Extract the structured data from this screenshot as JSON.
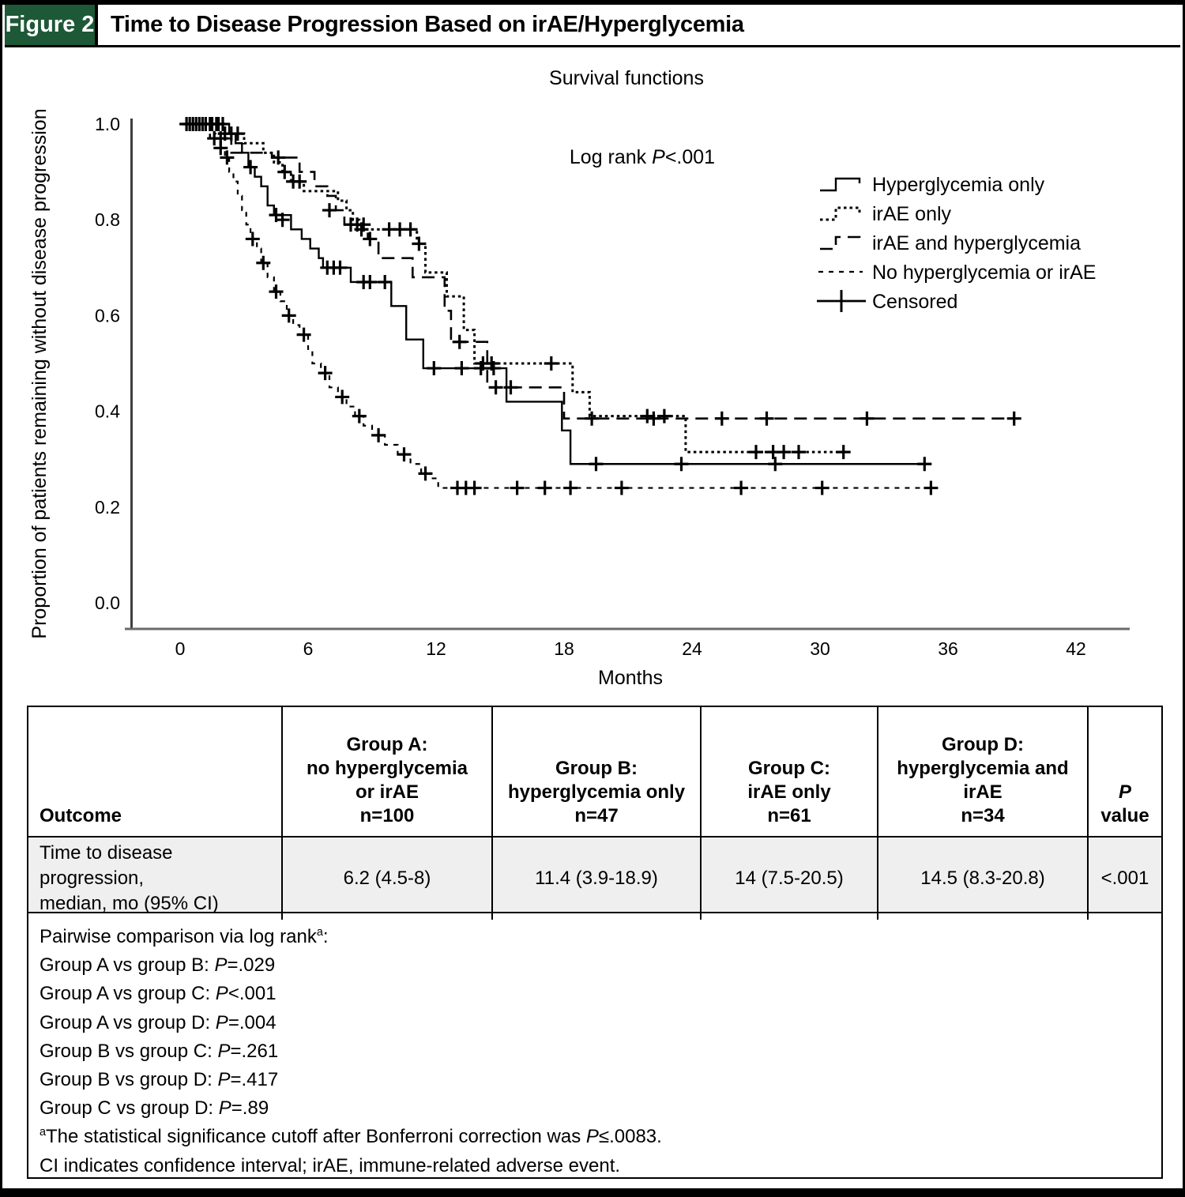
{
  "header": {
    "figure_label": "Figure 2",
    "title": "Time to Disease Progression Based on irAE/Hyperglycemia"
  },
  "colors": {
    "figure_tab_green": "#1d5837",
    "table_row_gray": "#efefef",
    "axis_gray": "#6b6b6b",
    "ink": "#000000"
  },
  "chart_data": {
    "type": "line",
    "subtype": "kaplan_meier_step",
    "title": "Survival functions",
    "annotation": "Log rank P<.001",
    "xlabel": "Months",
    "ylabel": "Proportion of patients remaining without disease progression",
    "xlim": [
      0,
      44.5
    ],
    "ylim": [
      0.0,
      1.05
    ],
    "xticks": [
      0,
      6,
      12,
      18,
      24,
      30,
      36,
      42
    ],
    "yticks": [
      1.0,
      0.8,
      0.6,
      0.4,
      0.2,
      0.0
    ],
    "grid": false,
    "legend_position": "upper right",
    "legend": [
      {
        "label": "Hyperglycemia only",
        "style": "solid"
      },
      {
        "label": "irAE only",
        "style": "dotted"
      },
      {
        "label": "irAE and hyperglycemia",
        "style": "dash"
      },
      {
        "label": "No hyperglycemia or irAE",
        "style": "shortdash"
      },
      {
        "label": "Censored",
        "style": "censor"
      }
    ],
    "series": [
      {
        "key": "no_hyperglycemia_or_irae",
        "name": "No hyperglycemia or irAE",
        "line_style": "shortdash",
        "steps": [
          [
            0,
            1.0
          ],
          [
            1.6,
            0.98
          ],
          [
            1.9,
            0.95
          ],
          [
            2.1,
            0.93
          ],
          [
            2.3,
            0.9
          ],
          [
            2.5,
            0.88
          ],
          [
            2.7,
            0.85
          ],
          [
            2.9,
            0.82
          ],
          [
            3.1,
            0.79
          ],
          [
            3.3,
            0.76
          ],
          [
            3.6,
            0.74
          ],
          [
            3.8,
            0.71
          ],
          [
            4.1,
            0.68
          ],
          [
            4.4,
            0.65
          ],
          [
            4.7,
            0.63
          ],
          [
            5.0,
            0.6
          ],
          [
            5.3,
            0.58
          ],
          [
            5.6,
            0.56
          ],
          [
            6.0,
            0.53
          ],
          [
            6.2,
            0.5
          ],
          [
            6.6,
            0.48
          ],
          [
            7.0,
            0.45
          ],
          [
            7.4,
            0.43
          ],
          [
            7.8,
            0.41
          ],
          [
            8.2,
            0.39
          ],
          [
            8.6,
            0.37
          ],
          [
            9.0,
            0.35
          ],
          [
            9.6,
            0.33
          ],
          [
            10.2,
            0.31
          ],
          [
            10.8,
            0.29
          ],
          [
            11.3,
            0.27
          ],
          [
            11.7,
            0.26
          ],
          [
            12.1,
            0.24
          ],
          [
            35.2,
            0.24
          ]
        ],
        "censors": [
          [
            0.3,
            1.0
          ],
          [
            0.45,
            1.0
          ],
          [
            0.6,
            1.0
          ],
          [
            0.75,
            1.0
          ],
          [
            0.9,
            1.0
          ],
          [
            1.05,
            1.0
          ],
          [
            1.2,
            1.0
          ],
          [
            1.9,
            0.95
          ],
          [
            2.2,
            0.93
          ],
          [
            3.4,
            0.76
          ],
          [
            3.9,
            0.71
          ],
          [
            4.5,
            0.65
          ],
          [
            5.1,
            0.6
          ],
          [
            5.8,
            0.56
          ],
          [
            6.8,
            0.48
          ],
          [
            7.6,
            0.43
          ],
          [
            8.4,
            0.39
          ],
          [
            9.3,
            0.35
          ],
          [
            10.5,
            0.31
          ],
          [
            11.5,
            0.27
          ],
          [
            13.0,
            0.24
          ],
          [
            13.4,
            0.24
          ],
          [
            13.8,
            0.24
          ],
          [
            15.8,
            0.24
          ],
          [
            17.1,
            0.24
          ],
          [
            18.3,
            0.24
          ],
          [
            20.7,
            0.24
          ],
          [
            26.3,
            0.24
          ],
          [
            30.1,
            0.24
          ],
          [
            35.2,
            0.24
          ]
        ]
      },
      {
        "key": "irae_and_hyperglycemia",
        "name": "irAE and hyperglycemia",
        "line_style": "dash",
        "steps": [
          [
            0,
            1.0
          ],
          [
            1.4,
            0.97
          ],
          [
            2.4,
            0.94
          ],
          [
            4.3,
            0.93
          ],
          [
            5.6,
            0.9
          ],
          [
            6.3,
            0.87
          ],
          [
            6.9,
            0.85
          ],
          [
            7.3,
            0.82
          ],
          [
            7.7,
            0.79
          ],
          [
            8.8,
            0.76
          ],
          [
            9.3,
            0.72
          ],
          [
            10.9,
            0.68
          ],
          [
            12.4,
            0.61
          ],
          [
            12.7,
            0.545
          ],
          [
            14.4,
            0.45
          ],
          [
            18.0,
            0.385
          ],
          [
            39.1,
            0.385
          ]
        ],
        "censors": [
          [
            1.6,
            0.97
          ],
          [
            1.9,
            0.97
          ],
          [
            4.6,
            0.93
          ],
          [
            7.0,
            0.82
          ],
          [
            8.0,
            0.79
          ],
          [
            8.3,
            0.79
          ],
          [
            8.6,
            0.79
          ],
          [
            8.9,
            0.76
          ],
          [
            13.1,
            0.545
          ],
          [
            14.8,
            0.45
          ],
          [
            15.5,
            0.45
          ],
          [
            19.3,
            0.385
          ],
          [
            22.2,
            0.385
          ],
          [
            25.4,
            0.385
          ],
          [
            27.5,
            0.385
          ],
          [
            32.2,
            0.385
          ],
          [
            39.1,
            0.385
          ]
        ]
      },
      {
        "key": "irae_only",
        "name": "irAE only",
        "line_style": "dotted",
        "steps": [
          [
            0,
            1.0
          ],
          [
            2.1,
            0.98
          ],
          [
            3.0,
            0.96
          ],
          [
            3.9,
            0.94
          ],
          [
            4.4,
            0.92
          ],
          [
            4.8,
            0.9
          ],
          [
            5.2,
            0.88
          ],
          [
            5.8,
            0.86
          ],
          [
            7.4,
            0.84
          ],
          [
            7.8,
            0.82
          ],
          [
            8.1,
            0.8
          ],
          [
            8.4,
            0.78
          ],
          [
            11.1,
            0.75
          ],
          [
            11.5,
            0.69
          ],
          [
            12.5,
            0.64
          ],
          [
            13.3,
            0.57
          ],
          [
            13.8,
            0.5
          ],
          [
            18.4,
            0.44
          ],
          [
            19.2,
            0.39
          ],
          [
            23.7,
            0.315
          ],
          [
            31.1,
            0.315
          ]
        ],
        "censors": [
          [
            1.4,
            1.0
          ],
          [
            1.7,
            1.0
          ],
          [
            2.0,
            1.0
          ],
          [
            2.4,
            0.98
          ],
          [
            2.7,
            0.98
          ],
          [
            4.9,
            0.9
          ],
          [
            5.3,
            0.88
          ],
          [
            5.6,
            0.88
          ],
          [
            8.5,
            0.78
          ],
          [
            9.8,
            0.78
          ],
          [
            10.3,
            0.78
          ],
          [
            10.8,
            0.78
          ],
          [
            11.2,
            0.75
          ],
          [
            14.2,
            0.5
          ],
          [
            14.6,
            0.5
          ],
          [
            17.4,
            0.5
          ],
          [
            21.9,
            0.39
          ],
          [
            22.7,
            0.39
          ],
          [
            27.0,
            0.315
          ],
          [
            27.8,
            0.315
          ],
          [
            28.3,
            0.315
          ],
          [
            29.0,
            0.315
          ],
          [
            31.1,
            0.315
          ]
        ]
      },
      {
        "key": "hyperglycemia_only",
        "name": "Hyperglycemia only",
        "line_style": "solid",
        "steps": [
          [
            0,
            1.0
          ],
          [
            2.3,
            0.98
          ],
          [
            2.6,
            0.96
          ],
          [
            2.9,
            0.94
          ],
          [
            3.2,
            0.91
          ],
          [
            3.5,
            0.89
          ],
          [
            3.8,
            0.87
          ],
          [
            4.1,
            0.83
          ],
          [
            4.4,
            0.81
          ],
          [
            5.2,
            0.78
          ],
          [
            5.7,
            0.76
          ],
          [
            6.1,
            0.74
          ],
          [
            6.5,
            0.72
          ],
          [
            6.7,
            0.7
          ],
          [
            8.0,
            0.67
          ],
          [
            9.9,
            0.62
          ],
          [
            10.6,
            0.55
          ],
          [
            11.4,
            0.49
          ],
          [
            15.3,
            0.42
          ],
          [
            17.9,
            0.36
          ],
          [
            18.3,
            0.29
          ],
          [
            34.9,
            0.29
          ]
        ],
        "censors": [
          [
            1.2,
            1.0
          ],
          [
            1.5,
            1.0
          ],
          [
            1.8,
            1.0
          ],
          [
            2.1,
            0.98
          ],
          [
            3.3,
            0.91
          ],
          [
            4.5,
            0.81
          ],
          [
            4.8,
            0.8
          ],
          [
            6.9,
            0.7
          ],
          [
            7.2,
            0.7
          ],
          [
            7.5,
            0.7
          ],
          [
            8.6,
            0.67
          ],
          [
            8.9,
            0.67
          ],
          [
            9.6,
            0.67
          ],
          [
            11.9,
            0.49
          ],
          [
            13.2,
            0.49
          ],
          [
            14.1,
            0.49
          ],
          [
            14.7,
            0.49
          ],
          [
            19.5,
            0.29
          ],
          [
            23.5,
            0.29
          ],
          [
            27.9,
            0.29
          ],
          [
            34.9,
            0.29
          ]
        ]
      }
    ]
  },
  "table": {
    "columns": [
      {
        "header_lines": [
          "Outcome"
        ],
        "align": "left"
      },
      {
        "header_lines": [
          "Group A:",
          "no hyperglycemia",
          "or irAE",
          "n=100"
        ]
      },
      {
        "header_lines": [
          "Group B:",
          "hyperglycemia only",
          "n=47"
        ]
      },
      {
        "header_lines": [
          "Group C:",
          "irAE only",
          "n=61"
        ]
      },
      {
        "header_lines": [
          "Group D:",
          "hyperglycemia and",
          "irAE",
          "n=34"
        ]
      },
      {
        "header_lines": [
          "P value"
        ]
      }
    ],
    "rows": [
      {
        "outcome_lines": [
          "Time to disease progression,",
          "median, mo (95% CI)"
        ],
        "values": [
          "6.2 (4.5-8)",
          "11.4 (3.9-18.9)",
          "14 (7.5-20.5)",
          "14.5 (8.3-20.8)",
          "<.001"
        ]
      }
    ],
    "footnotes": [
      "Pairwise comparison via log rankᵃ:",
      "Group A vs group B: P=.029",
      "Group A vs group C: P<.001",
      "Group A vs group D: P=.004",
      "Group B vs group C: P=.261",
      "Group B vs group D: P=.417",
      "Group C vs group D: P=.89",
      "ᵃThe statistical significance cutoff after Bonferroni correction was P≤.0083.",
      "CI indicates confidence interval; irAE, immune-related adverse event."
    ]
  }
}
